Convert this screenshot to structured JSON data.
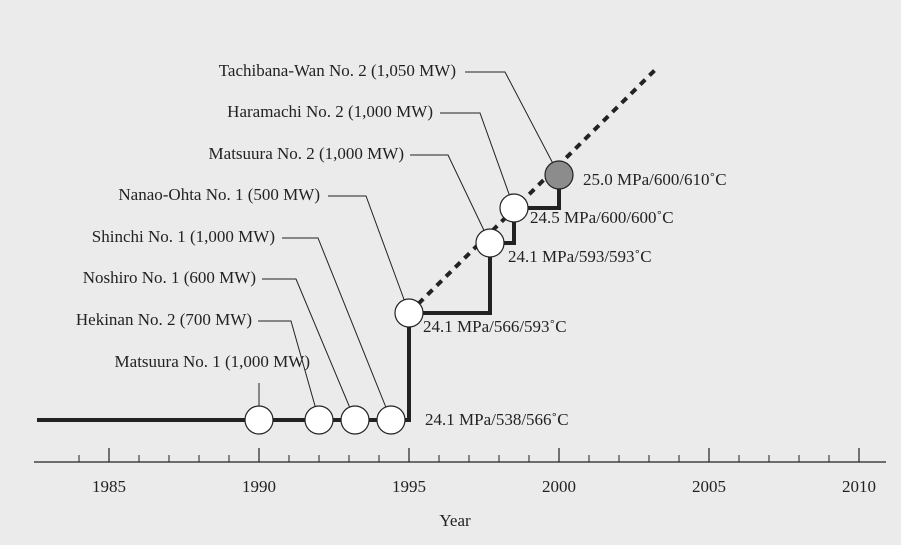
{
  "chart_data": {
    "type": "step",
    "xlabel": "Year",
    "xlim": [
      1982.5,
      2010.9
    ],
    "xticks": [
      1985,
      1990,
      1995,
      2000,
      2005,
      2010
    ],
    "xminorticks": [
      1984,
      1986,
      1987,
      1988,
      1989,
      1991,
      1992,
      1993,
      1994,
      1996,
      1997,
      1998,
      1999,
      2001,
      2002,
      2003,
      2004,
      2006,
      2007,
      2008,
      2009
    ],
    "line_color": "#222222",
    "node_color": "#ffffff",
    "latest_color": "#8c8c8c",
    "conditions": [
      {
        "label": "24.1 MPa/538/566˚C",
        "start": 1982.6,
        "plants": [
          {
            "name": "Matsuura No. 1 (1,000 MW)",
            "year": 1990
          },
          {
            "name": "Hekinan No. 2 (700 MW)",
            "year": 1992
          },
          {
            "name": "Noshiro No. 1 (600 MW)",
            "year": 1993.2
          },
          {
            "name": "Shinchi No. 1 (1,000 MW)",
            "year": 1994.4
          }
        ]
      },
      {
        "label": "24.1 MPa/566/593˚C",
        "start": 1995,
        "plants": [
          {
            "name": "Nanao-Ohta No. 1 (500 MW)",
            "year": 1995
          }
        ]
      },
      {
        "label": "24.1 MPa/593/593˚C",
        "start": 1997.7,
        "plants": [
          {
            "name": "Matsuura No. 2 (1,000 MW)",
            "year": 1997.7
          }
        ]
      },
      {
        "label": "24.5 MPa/600/600˚C",
        "start": 1998.5,
        "plants": [
          {
            "name": "Haramachi No. 2 (1,000 MW)",
            "year": 1998.5
          }
        ]
      },
      {
        "label": "25.0 MPa/600/610˚C",
        "start": 2000,
        "plants": [
          {
            "name": "Tachibana-Wan No. 2 (1,050 MW)",
            "year": 2000
          }
        ]
      }
    ]
  }
}
